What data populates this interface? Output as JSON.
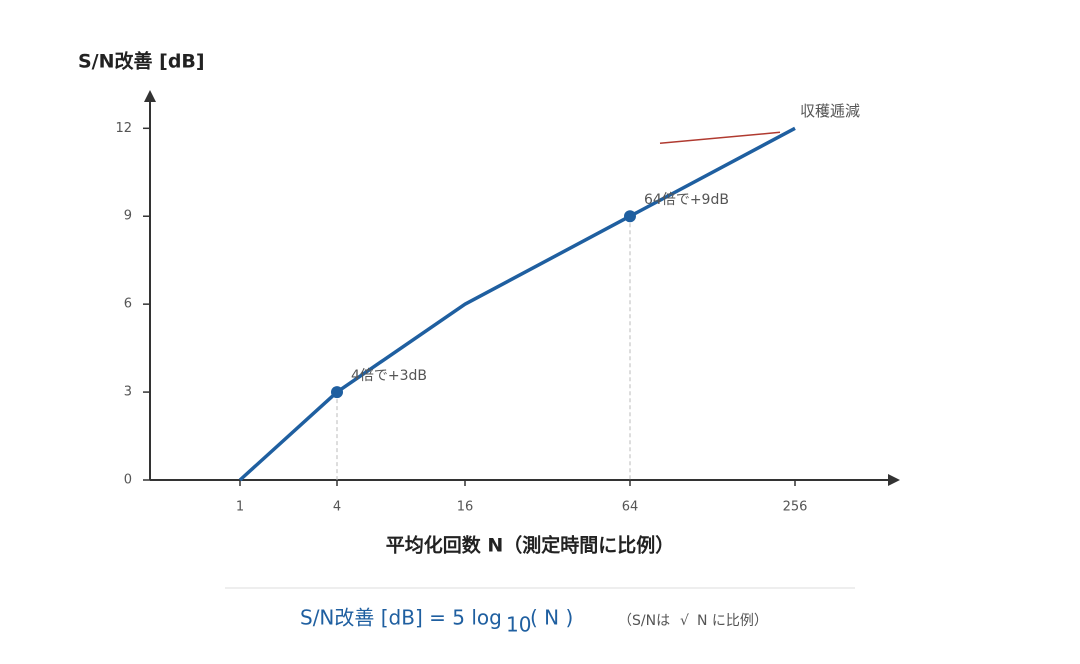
{
  "chart_data": {
    "type": "line",
    "y_label": "S/N改善 [dB]",
    "x_label": "平均化回数 N（測定時間に比例）",
    "categories": [
      "1",
      "4",
      "16",
      "64",
      "256"
    ],
    "values": [
      0,
      3,
      6,
      9,
      12
    ],
    "color": "#1f5fa0",
    "ylim": [
      0,
      13
    ],
    "yticks": [
      0,
      3,
      6,
      9,
      12
    ],
    "annotations": [
      {
        "text": "4倍で+3dB",
        "x": "4"
      },
      {
        "text": "64倍で+9dB",
        "x": "64"
      }
    ],
    "trend_note": {
      "text": "収穫逓減",
      "color": "#b03a30"
    },
    "formula": {
      "lhs": "S/N改善 [dB] = 5 log",
      "base": "10",
      "arg": "( N )",
      "note": "（S/Nは",
      "root": "√",
      "note_end": "N に比例）"
    }
  }
}
